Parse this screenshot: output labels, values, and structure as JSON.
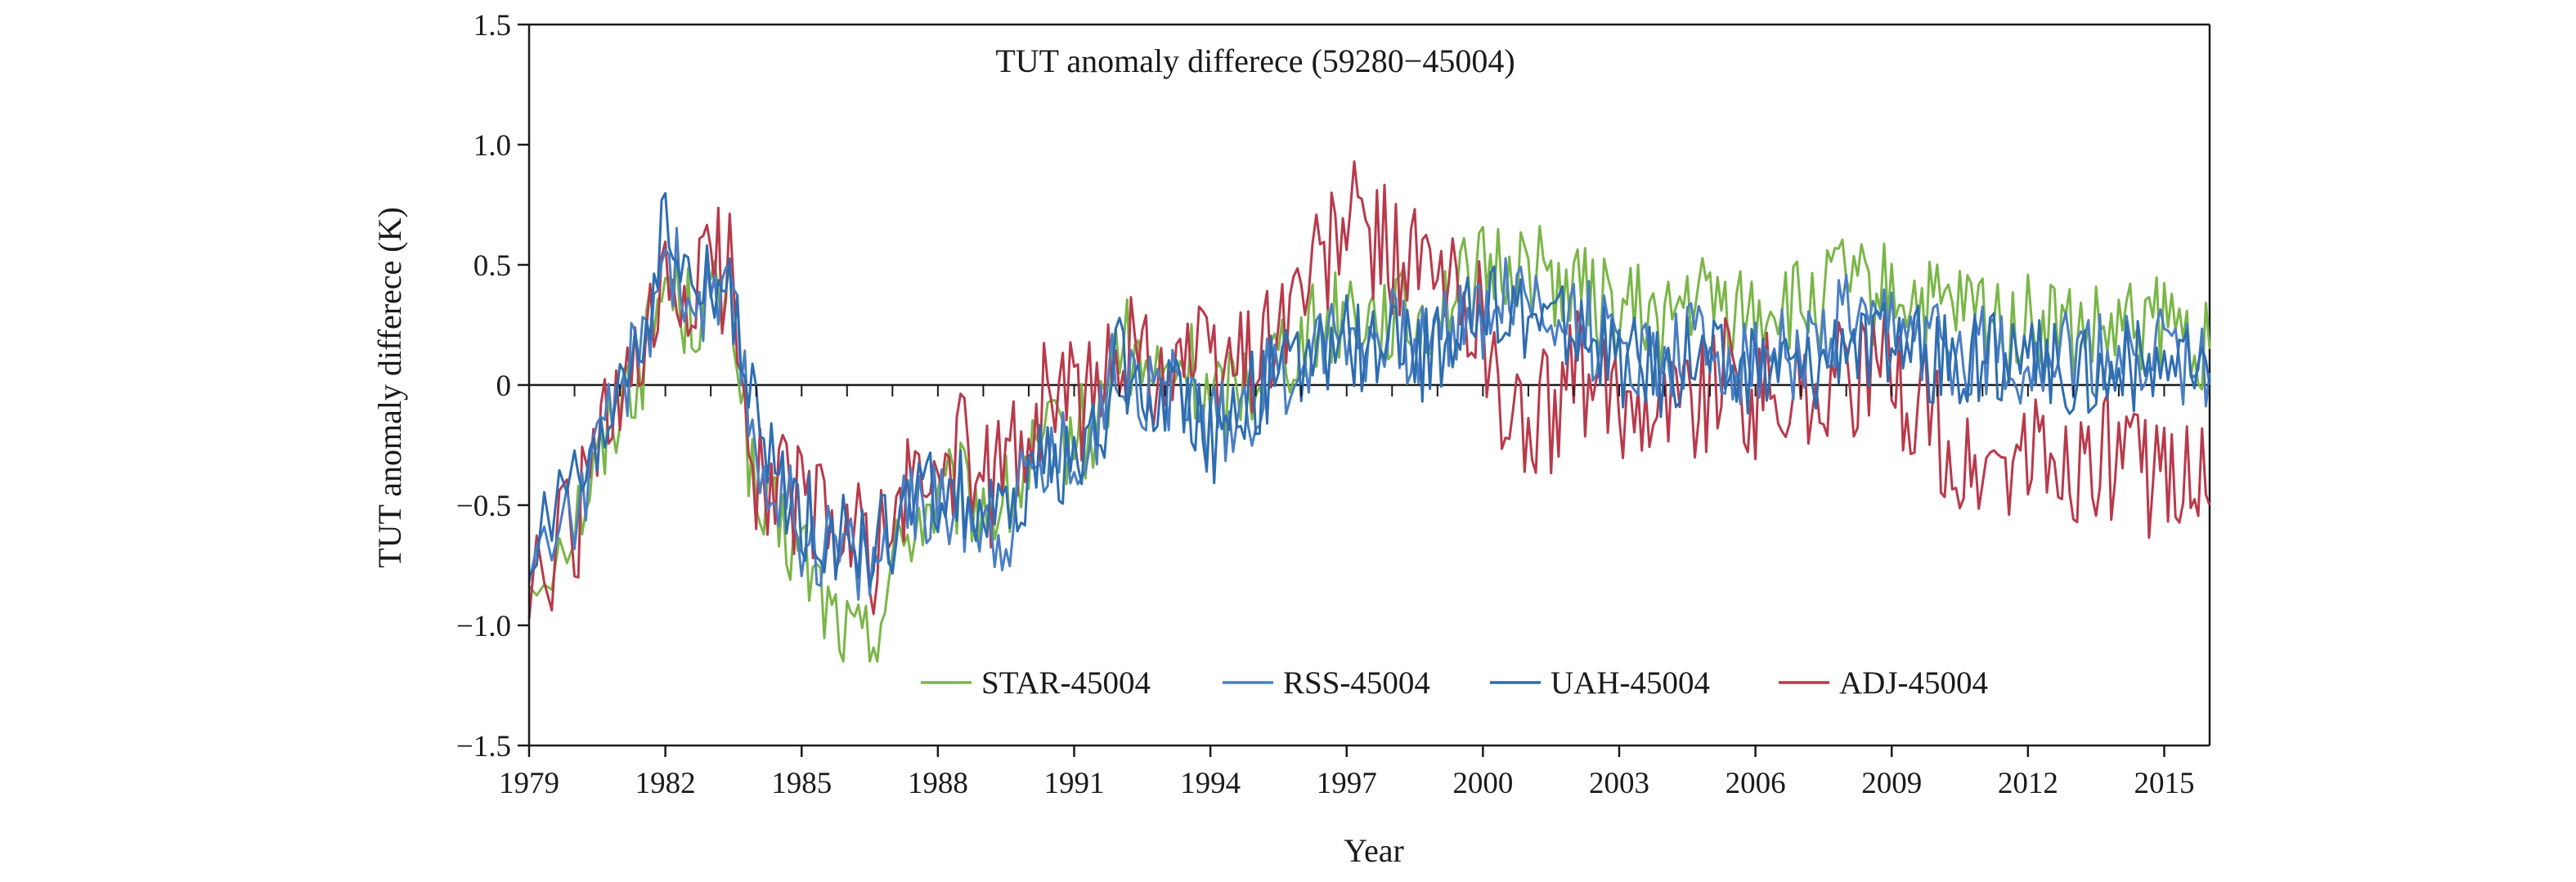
{
  "chart_data": {
    "type": "line",
    "title": "TUT anomaly differece (59280−45004)",
    "xlabel": "Year",
    "ylabel": "TUT anomaly differece (K)",
    "xlim": [
      1979,
      2016
    ],
    "ylim": [
      -1.5,
      1.5
    ],
    "x_ticks": [
      1979,
      1982,
      1985,
      1988,
      1991,
      1994,
      1997,
      2000,
      2003,
      2006,
      2009,
      2012,
      2015
    ],
    "y_ticks": [
      -1.5,
      -1.0,
      -0.5,
      0,
      0.5,
      1.0,
      1.5
    ],
    "y_tick_labels": [
      "−1.5",
      "−1.0",
      "−0.5",
      "0",
      "0.5",
      "1.0",
      "1.5"
    ],
    "legend_position": "bottom-center",
    "series": [
      {
        "name": "STAR-45004",
        "color": "#7ab648",
        "x": [
          1979.0,
          1980.0,
          1980.5,
          1981.0,
          1981.5,
          1982.0,
          1982.5,
          1983.0,
          1983.5,
          1984.0,
          1984.5,
          1985.0,
          1985.5,
          1986.0,
          1986.5,
          1987.0,
          1987.5,
          1988.0,
          1988.5,
          1989.0,
          1989.5,
          1990.0,
          1990.5,
          1991.0,
          1991.5,
          1992.0,
          1992.5,
          1993.0,
          1993.5,
          1994.0,
          1994.5,
          1995.0,
          1995.5,
          1996.0,
          1996.5,
          1997.0,
          1997.5,
          1998.0,
          1998.5,
          1999.0,
          1999.5,
          2000.0,
          2000.5,
          2001.0,
          2001.5,
          2002.0,
          2002.5,
          2003.0,
          2003.5,
          2004.0,
          2004.5,
          2005.0,
          2005.5,
          2006.0,
          2006.5,
          2007.0,
          2007.5,
          2008.0,
          2008.5,
          2009.0,
          2009.5,
          2010.0,
          2010.5,
          2011.0,
          2011.5,
          2012.0,
          2012.5,
          2013.0,
          2013.5,
          2014.0,
          2014.5,
          2015.0,
          2015.5,
          2016.0
        ],
        "y": [
          -0.8,
          -0.55,
          -0.35,
          -0.05,
          0.1,
          0.45,
          0.3,
          0.35,
          0.3,
          -0.55,
          -0.6,
          -0.7,
          -0.9,
          -1.05,
          -1.1,
          -0.75,
          -0.55,
          -0.5,
          -0.45,
          -0.5,
          -0.5,
          -0.35,
          -0.25,
          -0.2,
          -0.2,
          0.2,
          0.05,
          0.0,
          0.1,
          -0.1,
          0.0,
          0.05,
          0.15,
          0.2,
          0.25,
          0.35,
          0.3,
          0.3,
          0.25,
          0.35,
          0.4,
          0.45,
          0.5,
          0.5,
          0.45,
          0.4,
          0.35,
          0.3,
          0.3,
          0.25,
          0.35,
          0.35,
          0.3,
          0.3,
          0.35,
          0.3,
          0.35,
          0.45,
          0.35,
          0.4,
          0.35,
          0.3,
          0.3,
          0.3,
          0.25,
          0.25,
          0.25,
          0.2,
          0.2,
          0.2,
          0.25,
          0.25,
          0.2,
          0.15
        ]
      },
      {
        "name": "RSS-45004",
        "color": "#4a7ec2",
        "x": [
          1979.0,
          1980.0,
          1980.5,
          1981.0,
          1981.5,
          1982.0,
          1982.5,
          1983.0,
          1983.5,
          1984.0,
          1984.5,
          1985.0,
          1985.5,
          1986.0,
          1986.5,
          1987.0,
          1987.5,
          1988.0,
          1988.5,
          1989.0,
          1989.5,
          1990.0,
          1990.5,
          1991.0,
          1991.5,
          1992.0,
          1992.5,
          1993.0,
          1993.5,
          1994.0,
          1994.5,
          1995.0,
          1995.5,
          1996.0,
          1996.5,
          1997.0,
          1997.5,
          1998.0,
          1998.5,
          1999.0,
          1999.5,
          2000.0,
          2000.5,
          2001.0,
          2001.5,
          2002.0,
          2002.5,
          2003.0,
          2003.5,
          2004.0,
          2004.5,
          2005.0,
          2005.5,
          2006.0,
          2006.5,
          2007.0,
          2007.5,
          2008.0,
          2008.5,
          2009.0,
          2009.5,
          2010.0,
          2010.5,
          2011.0,
          2011.5,
          2012.0,
          2012.5,
          2013.0,
          2013.5,
          2014.0,
          2014.5,
          2015.0,
          2015.5,
          2016.0
        ],
        "y": [
          -0.75,
          -0.5,
          -0.35,
          0.0,
          0.15,
          0.6,
          0.35,
          0.35,
          0.3,
          -0.3,
          -0.45,
          -0.6,
          -0.65,
          -0.7,
          -0.75,
          -0.65,
          -0.5,
          -0.5,
          -0.5,
          -0.55,
          -0.6,
          -0.35,
          -0.3,
          -0.25,
          -0.2,
          0.15,
          0.0,
          -0.05,
          0.0,
          -0.2,
          -0.1,
          -0.05,
          0.05,
          0.1,
          0.2,
          0.25,
          0.2,
          0.2,
          0.15,
          0.2,
          0.3,
          0.3,
          0.4,
          0.35,
          0.3,
          0.3,
          0.2,
          0.15,
          0.15,
          0.1,
          0.2,
          0.15,
          0.1,
          0.1,
          0.15,
          0.1,
          0.15,
          0.3,
          0.15,
          0.25,
          0.2,
          0.15,
          0.15,
          0.15,
          0.15,
          0.1,
          0.15,
          0.1,
          0.1,
          0.1,
          0.15,
          0.15,
          0.1,
          0.05
        ]
      },
      {
        "name": "UAH-45004",
        "color": "#2e6db0",
        "x": [
          1979.0,
          1980.0,
          1980.5,
          1981.0,
          1981.5,
          1982.0,
          1982.5,
          1983.0,
          1983.5,
          1984.0,
          1984.5,
          1985.0,
          1985.5,
          1986.0,
          1986.5,
          1987.0,
          1987.5,
          1988.0,
          1988.5,
          1989.0,
          1989.5,
          1990.0,
          1990.5,
          1991.0,
          1991.5,
          1992.0,
          1992.5,
          1993.0,
          1993.5,
          1994.0,
          1994.5,
          1995.0,
          1995.5,
          1996.0,
          1996.5,
          1997.0,
          1997.5,
          1998.0,
          1998.5,
          1999.0,
          1999.5,
          2000.0,
          2000.5,
          2001.0,
          2001.5,
          2002.0,
          2002.5,
          2003.0,
          2003.5,
          2004.0,
          2004.5,
          2005.0,
          2005.5,
          2006.0,
          2006.5,
          2007.0,
          2007.5,
          2008.0,
          2008.5,
          2009.0,
          2009.5,
          2010.0,
          2010.5,
          2011.0,
          2011.5,
          2012.0,
          2012.5,
          2013.0,
          2013.5,
          2014.0,
          2014.5,
          2015.0,
          2015.5,
          2016.0
        ],
        "y": [
          -0.7,
          -0.45,
          -0.4,
          0.05,
          0.2,
          0.65,
          0.4,
          0.4,
          0.35,
          -0.2,
          -0.4,
          -0.55,
          -0.6,
          -0.65,
          -0.7,
          -0.6,
          -0.5,
          -0.45,
          -0.45,
          -0.55,
          -0.6,
          -0.4,
          -0.3,
          -0.3,
          -0.25,
          0.1,
          -0.05,
          -0.05,
          0.0,
          -0.25,
          -0.1,
          -0.05,
          0.05,
          0.05,
          0.15,
          0.2,
          0.15,
          0.15,
          0.1,
          0.15,
          0.25,
          0.25,
          0.35,
          0.3,
          0.25,
          0.25,
          0.15,
          0.1,
          0.1,
          0.05,
          0.15,
          0.1,
          0.05,
          0.05,
          0.1,
          0.05,
          0.1,
          0.25,
          0.1,
          0.2,
          0.15,
          0.1,
          0.1,
          0.1,
          0.1,
          0.05,
          0.1,
          0.05,
          0.05,
          0.05,
          0.1,
          0.1,
          0.05,
          0.0
        ]
      },
      {
        "name": "ADJ-45004",
        "color": "#b83a4b",
        "x": [
          1979.0,
          1980.0,
          1980.5,
          1981.0,
          1981.5,
          1982.0,
          1982.5,
          1983.0,
          1983.5,
          1984.0,
          1984.5,
          1985.0,
          1985.5,
          1986.0,
          1986.5,
          1987.0,
          1987.5,
          1988.0,
          1988.5,
          1989.0,
          1989.5,
          1990.0,
          1990.5,
          1991.0,
          1991.5,
          1992.0,
          1992.5,
          1993.0,
          1993.5,
          1994.0,
          1994.5,
          1995.0,
          1995.5,
          1996.0,
          1996.5,
          1997.0,
          1997.5,
          1998.0,
          1998.5,
          1999.0,
          1999.5,
          2000.0,
          2000.5,
          2001.0,
          2001.5,
          2002.0,
          2002.5,
          2003.0,
          2003.5,
          2004.0,
          2004.5,
          2005.0,
          2005.5,
          2006.0,
          2006.5,
          2007.0,
          2007.5,
          2008.0,
          2008.5,
          2009.0,
          2009.5,
          2010.0,
          2010.5,
          2011.0,
          2011.5,
          2012.0,
          2012.5,
          2013.0,
          2013.5,
          2014.0,
          2014.5,
          2015.0,
          2015.5,
          2016.0
        ],
        "y": [
          -0.9,
          -0.6,
          -0.3,
          -0.1,
          0.05,
          0.35,
          0.35,
          0.5,
          0.45,
          -0.35,
          -0.4,
          -0.5,
          -0.55,
          -0.65,
          -0.7,
          -0.6,
          -0.4,
          -0.35,
          -0.3,
          -0.45,
          -0.3,
          -0.2,
          0.0,
          -0.05,
          -0.1,
          0.2,
          0.1,
          0.1,
          0.15,
          0.05,
          0.1,
          0.15,
          0.25,
          0.4,
          0.5,
          0.7,
          0.6,
          0.55,
          0.5,
          0.4,
          0.35,
          0.3,
          -0.2,
          -0.15,
          -0.1,
          0.05,
          -0.05,
          -0.1,
          0.0,
          -0.05,
          -0.05,
          0.0,
          0.05,
          -0.05,
          0.0,
          -0.05,
          0.0,
          0.05,
          0.0,
          0.05,
          -0.05,
          -0.2,
          -0.4,
          -0.35,
          -0.35,
          -0.3,
          -0.35,
          -0.35,
          -0.3,
          -0.3,
          -0.4,
          -0.35,
          -0.35,
          -0.5
        ]
      }
    ]
  }
}
